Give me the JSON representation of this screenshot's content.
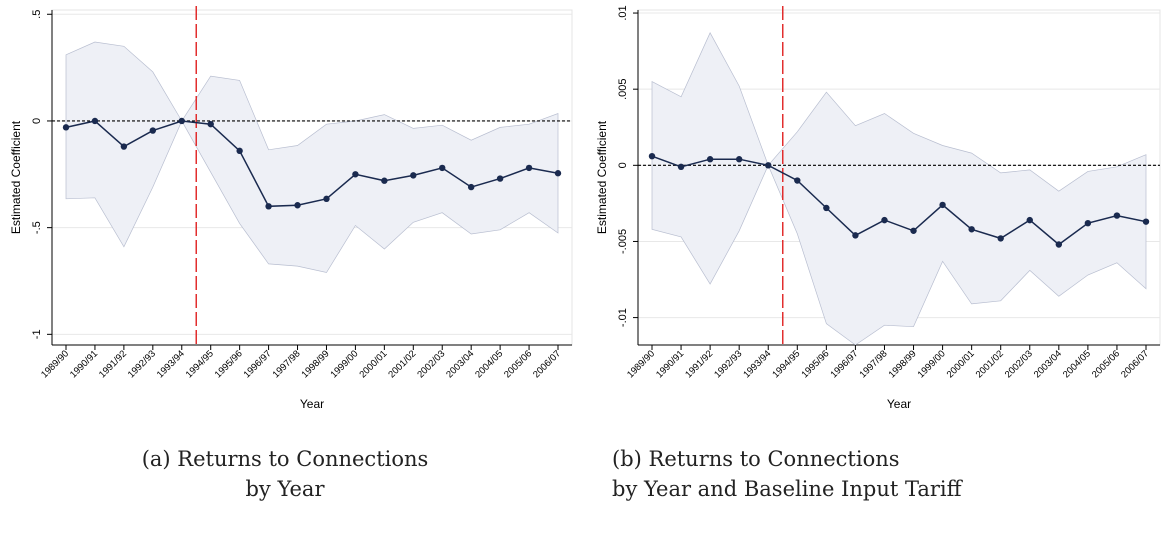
{
  "figure": {
    "captions": [
      {
        "line1": "(a) Returns to Connections",
        "line2": "by Year"
      },
      {
        "line1": "(b) Returns to Connections",
        "line2": "by Year and Baseline Input Tariff"
      }
    ]
  },
  "chart_data": [
    {
      "type": "line",
      "title": "",
      "xlabel": "Year",
      "ylabel": "Estimated Coefficient",
      "categories": [
        "1989/90",
        "1990/91",
        "1991/92",
        "1992/93",
        "1993/94",
        "1994/95",
        "1995/96",
        "1996/97",
        "1997/98",
        "1998/99",
        "1999/00",
        "2000/01",
        "2001/02",
        "2002/03",
        "2003/04",
        "2004/05",
        "2005/06",
        "2006/07"
      ],
      "ylim": [
        -1.05,
        0.52
      ],
      "yticks": [
        0.5,
        0,
        -0.5,
        -1
      ],
      "ytick_labels": [
        ".5",
        "0",
        "-.5",
        "-1"
      ],
      "grid": true,
      "reference_line": 0,
      "vertical_marker_between": [
        "1993/94",
        "1994/95"
      ],
      "series": [
        {
          "role": "point_estimate",
          "values": [
            -0.03,
            0.0,
            -0.12,
            -0.045,
            0.0,
            -0.015,
            -0.14,
            -0.4,
            -0.395,
            -0.365,
            -0.25,
            -0.28,
            -0.255,
            -0.22,
            -0.31,
            -0.27,
            -0.22,
            -0.245
          ]
        },
        {
          "role": "ci_upper",
          "values": [
            0.31,
            0.37,
            0.35,
            0.23,
            0.0,
            0.21,
            0.19,
            -0.135,
            -0.115,
            -0.015,
            0.0,
            0.03,
            -0.035,
            -0.02,
            -0.09,
            -0.03,
            -0.015,
            0.035
          ]
        },
        {
          "role": "ci_lower",
          "values": [
            -0.365,
            -0.36,
            -0.59,
            -0.31,
            0.0,
            -0.24,
            -0.48,
            -0.67,
            -0.68,
            -0.71,
            -0.49,
            -0.6,
            -0.475,
            -0.43,
            -0.53,
            -0.51,
            -0.43,
            -0.525
          ]
        }
      ],
      "colors": {
        "line": "#1a2a4f",
        "marker": "#1a2a4f",
        "band": "#eef0f6",
        "band_edge": "#b8bed0",
        "vertical_marker": "#e02020",
        "reference": "#000000"
      }
    },
    {
      "type": "line",
      "title": "",
      "xlabel": "Year",
      "ylabel": "Estimated Coefficient",
      "categories": [
        "1989/90",
        "1990/91",
        "1991/92",
        "1992/93",
        "1993/94",
        "1994/95",
        "1995/96",
        "1996/97",
        "1997/98",
        "1998/99",
        "1999/00",
        "2000/01",
        "2001/02",
        "2002/03",
        "2003/04",
        "2004/05",
        "2005/06",
        "2006/07"
      ],
      "ylim": [
        -0.0118,
        0.0102
      ],
      "yticks": [
        0.01,
        0.005,
        0,
        -0.005,
        -0.01
      ],
      "ytick_labels": [
        ".01",
        ".005",
        "0",
        "-.005",
        "-.01"
      ],
      "grid": true,
      "reference_line": 0,
      "vertical_marker_between": [
        "1993/94",
        "1994/95"
      ],
      "series": [
        {
          "role": "point_estimate",
          "values": [
            0.0006,
            -0.0001,
            0.0004,
            0.0004,
            0.0,
            -0.001,
            -0.0028,
            -0.0046,
            -0.0036,
            -0.0043,
            -0.0026,
            -0.0042,
            -0.0048,
            -0.0036,
            -0.0052,
            -0.0038,
            -0.0033,
            -0.0037
          ]
        },
        {
          "role": "ci_upper",
          "values": [
            0.0055,
            0.0045,
            0.0087,
            0.0052,
            0.0,
            0.0022,
            0.0048,
            0.0026,
            0.0034,
            0.0021,
            0.0013,
            0.0008,
            -0.0005,
            -0.0003,
            -0.0017,
            -0.0004,
            -0.0001,
            0.0007
          ]
        },
        {
          "role": "ci_lower",
          "values": [
            -0.0042,
            -0.0047,
            -0.0078,
            -0.0043,
            0.0,
            -0.0045,
            -0.0104,
            -0.0118,
            -0.0105,
            -0.0106,
            -0.0063,
            -0.0091,
            -0.0089,
            -0.0069,
            -0.0086,
            -0.0072,
            -0.0064,
            -0.0081
          ]
        }
      ],
      "colors": {
        "line": "#1a2a4f",
        "marker": "#1a2a4f",
        "band": "#eef0f6",
        "band_edge": "#b8bed0",
        "vertical_marker": "#e02020",
        "reference": "#000000"
      }
    }
  ]
}
